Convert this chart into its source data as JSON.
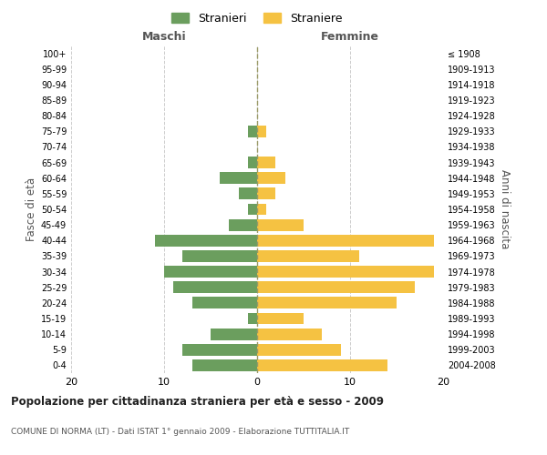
{
  "age_groups": [
    "0-4",
    "5-9",
    "10-14",
    "15-19",
    "20-24",
    "25-29",
    "30-34",
    "35-39",
    "40-44",
    "45-49",
    "50-54",
    "55-59",
    "60-64",
    "65-69",
    "70-74",
    "75-79",
    "80-84",
    "85-89",
    "90-94",
    "95-99",
    "100+"
  ],
  "birth_years": [
    "2004-2008",
    "1999-2003",
    "1994-1998",
    "1989-1993",
    "1984-1988",
    "1979-1983",
    "1974-1978",
    "1969-1973",
    "1964-1968",
    "1959-1963",
    "1954-1958",
    "1949-1953",
    "1944-1948",
    "1939-1943",
    "1934-1938",
    "1929-1933",
    "1924-1928",
    "1919-1923",
    "1914-1918",
    "1909-1913",
    "≤ 1908"
  ],
  "maschi": [
    7,
    8,
    5,
    1,
    7,
    9,
    10,
    8,
    11,
    3,
    1,
    2,
    4,
    1,
    0,
    1,
    0,
    0,
    0,
    0,
    0
  ],
  "femmine": [
    14,
    9,
    7,
    5,
    15,
    17,
    19,
    11,
    19,
    5,
    1,
    2,
    3,
    2,
    0,
    1,
    0,
    0,
    0,
    0,
    0
  ],
  "color_maschi": "#6b9e5e",
  "color_femmine": "#f5c242",
  "title": "Popolazione per cittadinanza straniera per età e sesso - 2009",
  "subtitle": "COMUNE DI NORMA (LT) - Dati ISTAT 1° gennaio 2009 - Elaborazione TUTTITALIA.IT",
  "ylabel_left": "Fasce di età",
  "ylabel_right": "Anni di nascita",
  "xlabel_maschi": "Maschi",
  "xlabel_femmine": "Femmine",
  "legend_maschi": "Stranieri",
  "legend_femmine": "Straniere",
  "xlim": 20,
  "background_color": "#ffffff",
  "grid_color": "#cccccc"
}
